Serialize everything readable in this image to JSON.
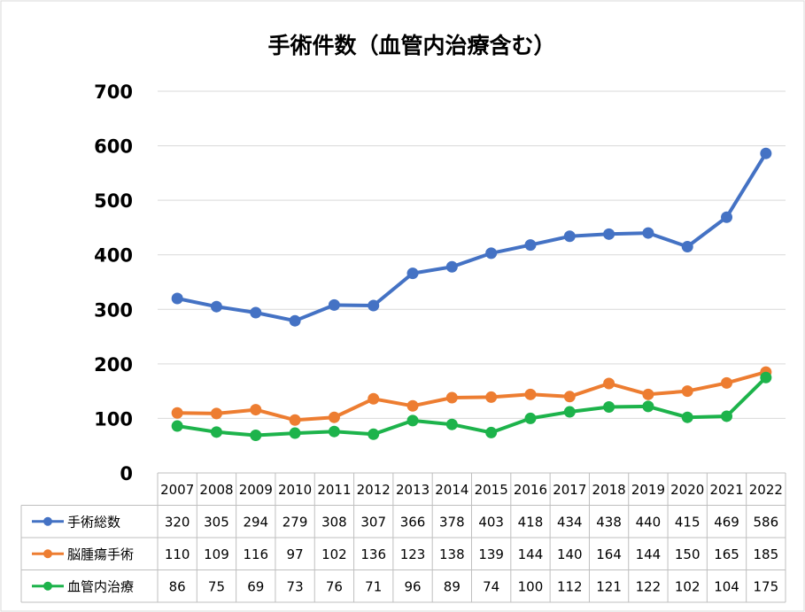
{
  "chart_data": {
    "type": "line",
    "title": "手術件数（血管内治療含む）",
    "categories": [
      "2007",
      "2008",
      "2009",
      "2010",
      "2011",
      "2012",
      "2013",
      "2014",
      "2015",
      "2016",
      "2017",
      "2018",
      "2019",
      "2020",
      "2021",
      "2022"
    ],
    "ylim": [
      0,
      700
    ],
    "yticks": [
      0,
      100,
      200,
      300,
      400,
      500,
      600,
      700
    ],
    "grid": true,
    "legend": "data-table",
    "series": [
      {
        "name": "手術総数",
        "color": "#4472C4",
        "values": [
          320,
          305,
          294,
          279,
          308,
          307,
          366,
          378,
          403,
          418,
          434,
          438,
          440,
          415,
          469,
          586
        ]
      },
      {
        "name": "脳腫瘍手術",
        "color": "#ED7D31",
        "values": [
          110,
          109,
          116,
          97,
          102,
          136,
          123,
          138,
          139,
          144,
          140,
          164,
          144,
          150,
          165,
          185
        ]
      },
      {
        "name": "血管内治療",
        "color": "#1DB34B",
        "values": [
          86,
          75,
          69,
          73,
          76,
          71,
          96,
          89,
          74,
          100,
          112,
          121,
          122,
          102,
          104,
          175
        ]
      }
    ]
  }
}
